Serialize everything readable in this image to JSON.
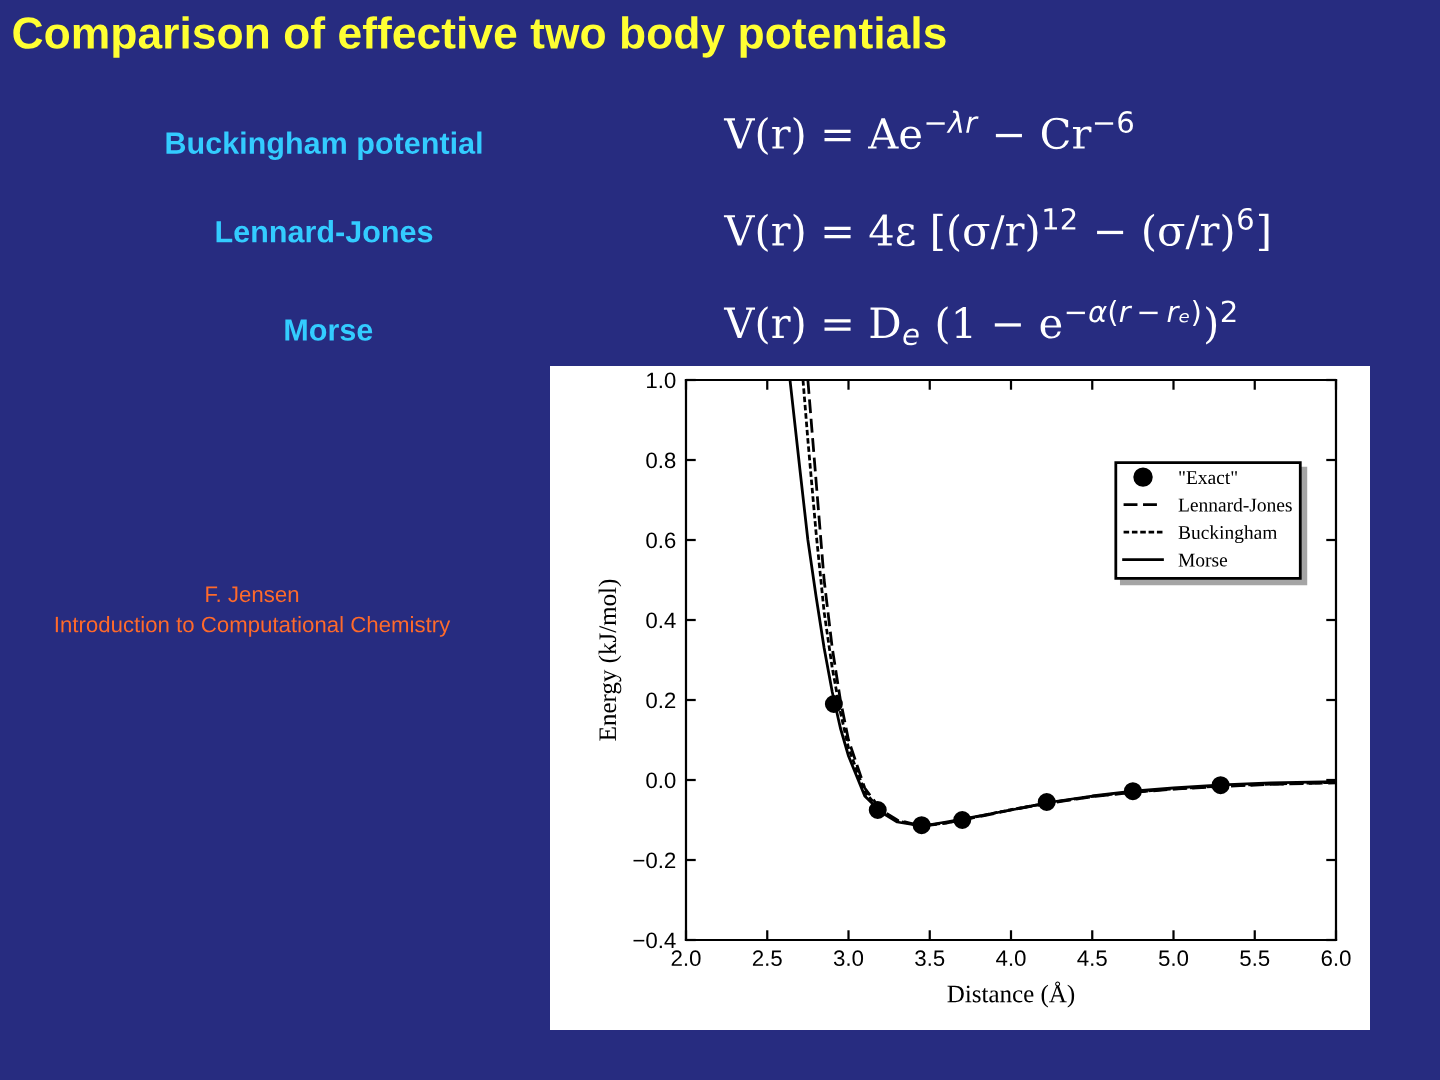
{
  "chart_data": {
    "type": "line",
    "title": "Comparison of effective two body potentials",
    "xlabel": "Distance (Å)",
    "ylabel": "Energy (kJ/mol)",
    "xlim": [
      2.0,
      6.0
    ],
    "xticks": [
      {
        "value": 2.0,
        "label": "2.0"
      },
      2.5,
      {
        "value": 3.0,
        "label": "3.0"
      },
      3.5,
      {
        "value": 4.0,
        "label": "4.0"
      },
      4.5,
      {
        "value": 5.0,
        "label": "5.0"
      },
      5.5,
      {
        "value": 6.0,
        "label": "6.0"
      }
    ],
    "ylim": [
      -0.4,
      1.0
    ],
    "yticks": [
      {
        "value": -0.4,
        "label": "−0.4"
      },
      {
        "value": -0.2,
        "label": "−0.2"
      },
      {
        "value": 0.0,
        "label": "0.0"
      },
      0.2,
      0.4,
      0.6,
      0.8,
      {
        "value": 1.0,
        "label": "1.0"
      }
    ],
    "grid": false,
    "legend": "top right",
    "series": [
      {
        "name": "\"Exact\"",
        "type": "scatter",
        "marker": "circle",
        "color": "#000000",
        "x": [
          2.91,
          3.18,
          3.45,
          3.7,
          4.22,
          4.75,
          5.29
        ],
        "values": [
          0.19,
          -0.075,
          -0.113,
          -0.1,
          -0.055,
          -0.028,
          -0.013
        ]
      },
      {
        "name": "Lennard-Jones",
        "line_style": "dashed",
        "color": "#000000",
        "x": [
          2.75,
          2.8,
          2.85,
          2.9,
          2.95,
          3.0,
          3.1,
          3.2,
          3.3,
          3.45,
          3.6,
          3.8,
          4.0,
          4.25,
          4.5,
          4.75,
          5.0,
          5.3,
          5.6,
          6.0
        ],
        "values": [
          1.0,
          0.75,
          0.5,
          0.33,
          0.2,
          0.1,
          -0.02,
          -0.075,
          -0.1,
          -0.115,
          -0.108,
          -0.092,
          -0.075,
          -0.057,
          -0.042,
          -0.031,
          -0.023,
          -0.016,
          -0.011,
          -0.007
        ]
      },
      {
        "name": "Buckingham",
        "line_style": "dotted",
        "color": "#000000",
        "x": [
          2.72,
          2.75,
          2.8,
          2.85,
          2.9,
          2.95,
          3.0,
          3.1,
          3.2,
          3.3,
          3.45,
          3.6,
          3.8,
          4.0,
          4.25,
          4.5,
          4.75,
          5.0,
          5.3,
          5.6,
          6.0
        ],
        "values": [
          1.0,
          0.85,
          0.62,
          0.42,
          0.28,
          0.17,
          0.08,
          -0.03,
          -0.077,
          -0.102,
          -0.115,
          -0.107,
          -0.091,
          -0.074,
          -0.056,
          -0.041,
          -0.03,
          -0.022,
          -0.015,
          -0.01,
          -0.006
        ]
      },
      {
        "name": "Morse",
        "line_style": "solid",
        "color": "#000000",
        "x": [
          2.64,
          2.7,
          2.75,
          2.8,
          2.85,
          2.9,
          2.95,
          3.0,
          3.1,
          3.2,
          3.3,
          3.45,
          3.6,
          3.8,
          4.0,
          4.25,
          4.5,
          4.75,
          5.0,
          5.3,
          5.6,
          6.0
        ],
        "values": [
          1.0,
          0.78,
          0.6,
          0.46,
          0.33,
          0.22,
          0.13,
          0.06,
          -0.04,
          -0.08,
          -0.105,
          -0.115,
          -0.105,
          -0.09,
          -0.075,
          -0.055,
          -0.04,
          -0.028,
          -0.02,
          -0.012,
          -0.007,
          -0.004
        ]
      }
    ],
    "annotations": [
      "Buckingham potential",
      "Lennard-Jones",
      "Morse",
      "V(r) = Ae$^{−λr}$ − Cr$^{−6}$",
      "V(r) = 4ε [(σ/r)$^{12}$ − (σ/r)$^{6}$]",
      "V(r) = D$_{e}$ (1 − e$^{−α(r−rₑ)}$)$^{2}$",
      "F. Jensen",
      "Introduction to Computational Chemistry"
    ]
  }
}
